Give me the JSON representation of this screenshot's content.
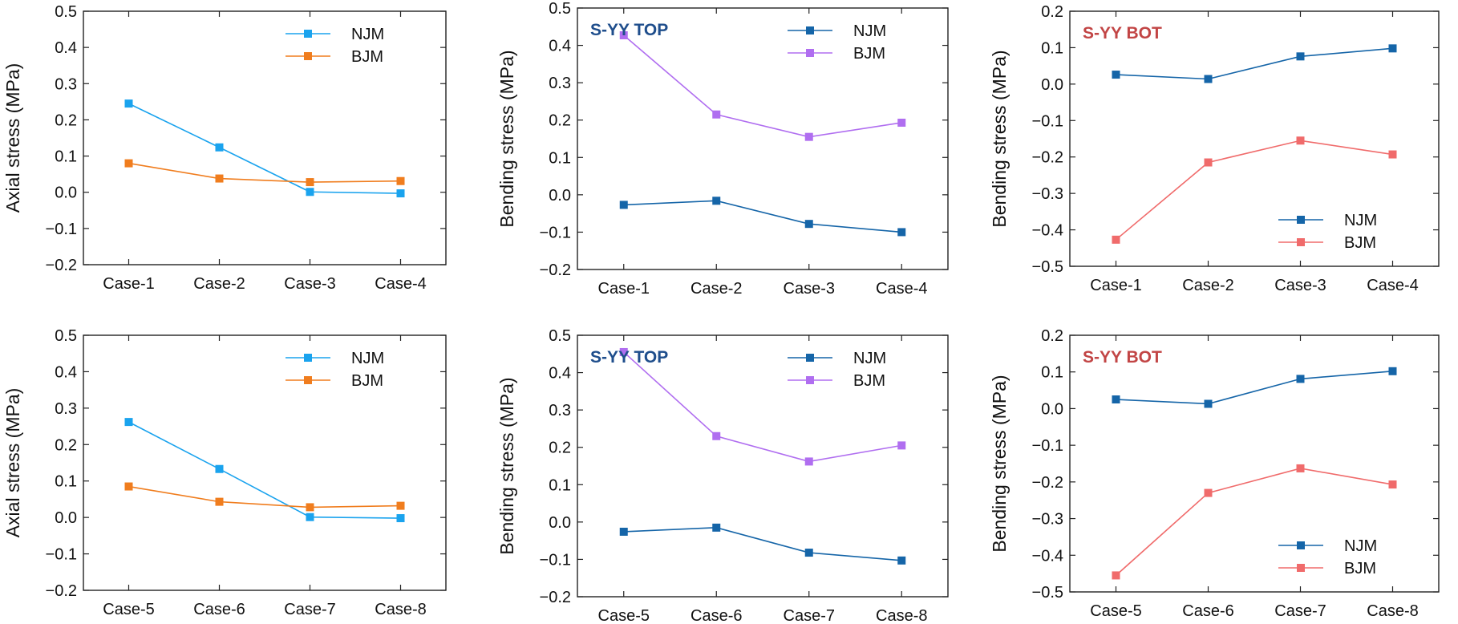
{
  "figure": {
    "chart_data": [
      {
        "type": "line",
        "categories": [
          "Case-1",
          "Case-2",
          "Case-3",
          "Case-4"
        ],
        "ylabel": "Axial stress (MPa)",
        "ylim": [
          -0.2,
          0.5
        ],
        "yticks": [
          "−0.2",
          "−0.1",
          "0.0",
          "0.1",
          "0.2",
          "0.3",
          "0.4",
          "0.5"
        ],
        "annotation": "",
        "legend_position": "top-right",
        "series": [
          {
            "name": "NJM",
            "color": "#1aa3ee",
            "values": [
              0.245,
              0.124,
              0.001,
              -0.003
            ]
          },
          {
            "name": "BJM",
            "color": "#f07d1e",
            "values": [
              0.08,
              0.038,
              0.028,
              0.031
            ]
          }
        ]
      },
      {
        "type": "line",
        "categories": [
          "Case-1",
          "Case-2",
          "Case-3",
          "Case-4"
        ],
        "ylabel": "Bending stress (MPa)",
        "ylim": [
          -0.2,
          0.5
        ],
        "yticks": [
          "−0.2",
          "−0.1",
          "0.0",
          "0.1",
          "0.2",
          "0.3",
          "0.4",
          "0.5"
        ],
        "annotation": "S-YY TOP",
        "annotation_color": "#1f4e8c",
        "legend_position": "top-right",
        "series": [
          {
            "name": "NJM",
            "color": "#1565a8",
            "values": [
              -0.027,
              -0.016,
              -0.078,
              -0.1
            ]
          },
          {
            "name": "BJM",
            "color": "#b06ef0",
            "values": [
              0.427,
              0.215,
              0.155,
              0.193
            ]
          }
        ]
      },
      {
        "type": "line",
        "categories": [
          "Case-1",
          "Case-2",
          "Case-3",
          "Case-4"
        ],
        "ylabel": "Bending stress (MPa)",
        "ylim": [
          -0.5,
          0.2
        ],
        "yticks": [
          "−0.5",
          "−0.4",
          "−0.3",
          "−0.2",
          "−0.1",
          "0.0",
          "0.1",
          "0.2"
        ],
        "annotation": "S-YY BOT",
        "annotation_color": "#c24545",
        "legend_position": "bottom-right",
        "series": [
          {
            "name": "NJM",
            "color": "#1565a8",
            "values": [
              0.026,
              0.014,
              0.076,
              0.098
            ]
          },
          {
            "name": "BJM",
            "color": "#f06b6b",
            "values": [
              -0.427,
              -0.215,
              -0.155,
              -0.193
            ]
          }
        ]
      },
      {
        "type": "line",
        "categories": [
          "Case-5",
          "Case-6",
          "Case-7",
          "Case-8"
        ],
        "ylabel": "Axial stress (MPa)",
        "ylim": [
          -0.2,
          0.5
        ],
        "yticks": [
          "−0.2",
          "−0.1",
          "0.0",
          "0.1",
          "0.2",
          "0.3",
          "0.4",
          "0.5"
        ],
        "annotation": "",
        "legend_position": "top-right",
        "series": [
          {
            "name": "NJM",
            "color": "#1aa3ee",
            "values": [
              0.262,
              0.133,
              0.001,
              -0.002
            ]
          },
          {
            "name": "BJM",
            "color": "#f07d1e",
            "values": [
              0.085,
              0.043,
              0.028,
              0.032
            ]
          }
        ]
      },
      {
        "type": "line",
        "categories": [
          "Case-5",
          "Case-6",
          "Case-7",
          "Case-8"
        ],
        "ylabel": "Bending stress (MPa)",
        "ylim": [
          -0.2,
          0.5
        ],
        "yticks": [
          "−0.2",
          "−0.1",
          "0.0",
          "0.1",
          "0.2",
          "0.3",
          "0.4",
          "0.5"
        ],
        "annotation": "S-YY TOP",
        "annotation_color": "#1f4e8c",
        "legend_position": "top-right",
        "series": [
          {
            "name": "NJM",
            "color": "#1565a8",
            "values": [
              -0.026,
              -0.015,
              -0.082,
              -0.103
            ]
          },
          {
            "name": "BJM",
            "color": "#b06ef0",
            "values": [
              0.455,
              0.23,
              0.162,
              0.205
            ]
          }
        ]
      },
      {
        "type": "line",
        "categories": [
          "Case-5",
          "Case-6",
          "Case-7",
          "Case-8"
        ],
        "ylabel": "Bending stress (MPa)",
        "ylim": [
          -0.5,
          0.2
        ],
        "yticks": [
          "−0.5",
          "−0.4",
          "−0.3",
          "−0.2",
          "−0.1",
          "0.0",
          "0.1",
          "0.2"
        ],
        "annotation": "S-YY BOT",
        "annotation_color": "#c24545",
        "legend_position": "bottom-right",
        "series": [
          {
            "name": "NJM",
            "color": "#1565a8",
            "values": [
              0.025,
              0.013,
              0.081,
              0.102
            ]
          },
          {
            "name": "BJM",
            "color": "#f06b6b",
            "values": [
              -0.455,
              -0.23,
              -0.163,
              -0.207
            ]
          }
        ]
      }
    ]
  }
}
